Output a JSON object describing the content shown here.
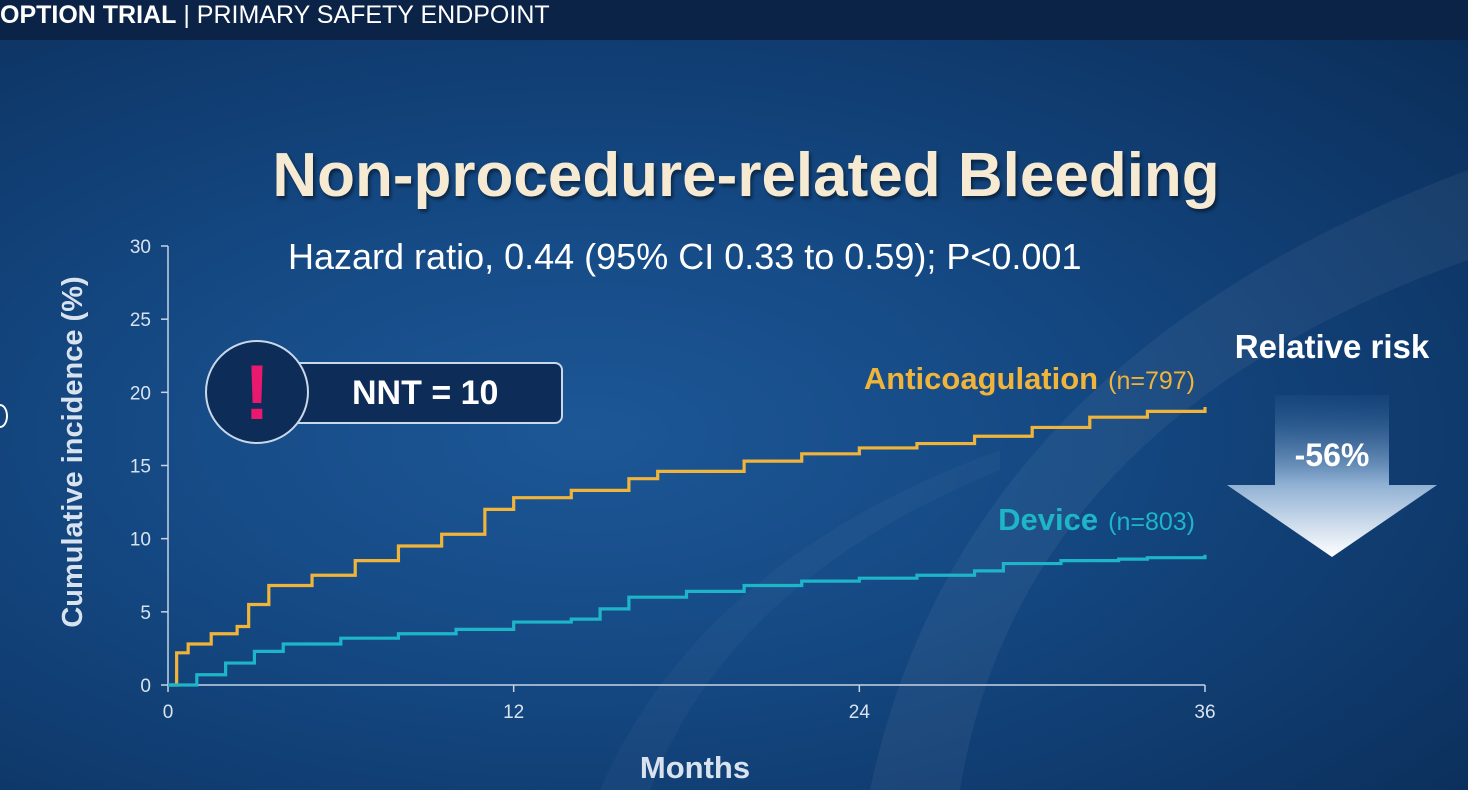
{
  "header": {
    "trial_name": "OPTION TRIAL",
    "separator": "|",
    "section": "PRIMARY SAFETY ENDPOINT"
  },
  "colors": {
    "anticoagulation": "#f0b43a",
    "device": "#1eb5c8",
    "title": "#f6ead2",
    "alert": "#e8196e"
  },
  "nnt": {
    "icon": "exclamation-icon",
    "icon_glyph": "!",
    "label": "NNT = 10"
  },
  "relative_risk": {
    "label": "Relative risk",
    "value": "-56%",
    "icon": "down-arrow-icon"
  },
  "chart_data": {
    "type": "line",
    "title": "Non-procedure-related Bleeding",
    "subtitle": "Hazard ratio, 0.44 (95% CI 0.33 to 0.59); P<0.001",
    "xlabel": "Months",
    "ylabel": "Cumulative incidence (%)",
    "xlim": [
      0,
      36
    ],
    "ylim": [
      0,
      30
    ],
    "xticks": [
      0,
      12,
      24,
      36
    ],
    "yticks": [
      0,
      5,
      10,
      15,
      20,
      25,
      30
    ],
    "series": [
      {
        "name": "Anticoagulation",
        "n_label": "(n=797)",
        "x": [
          0,
          0.3,
          0.7,
          1.5,
          2.4,
          2.8,
          3.5,
          5,
          6.5,
          8,
          9.5,
          11,
          12,
          14,
          16,
          17,
          20,
          22,
          24,
          26,
          28,
          30,
          32,
          34,
          36
        ],
        "y": [
          0,
          2.2,
          2.8,
          3.5,
          4.0,
          5.5,
          6.8,
          7.5,
          8.5,
          9.5,
          10.3,
          12.0,
          12.8,
          13.3,
          14.1,
          14.6,
          15.3,
          15.8,
          16.2,
          16.5,
          17.0,
          17.6,
          18.3,
          18.7,
          19.0
        ]
      },
      {
        "name": "Device",
        "n_label": "(n=803)",
        "x": [
          0,
          1,
          2,
          3,
          4,
          6,
          8,
          10,
          12,
          14,
          15,
          16,
          18,
          20,
          22,
          24,
          26,
          28,
          29,
          31,
          33,
          34,
          36
        ],
        "y": [
          0,
          0.7,
          1.5,
          2.3,
          2.8,
          3.2,
          3.5,
          3.8,
          4.3,
          4.5,
          5.2,
          6.0,
          6.4,
          6.8,
          7.1,
          7.3,
          7.5,
          7.8,
          8.3,
          8.5,
          8.6,
          8.7,
          8.9
        ]
      }
    ]
  }
}
